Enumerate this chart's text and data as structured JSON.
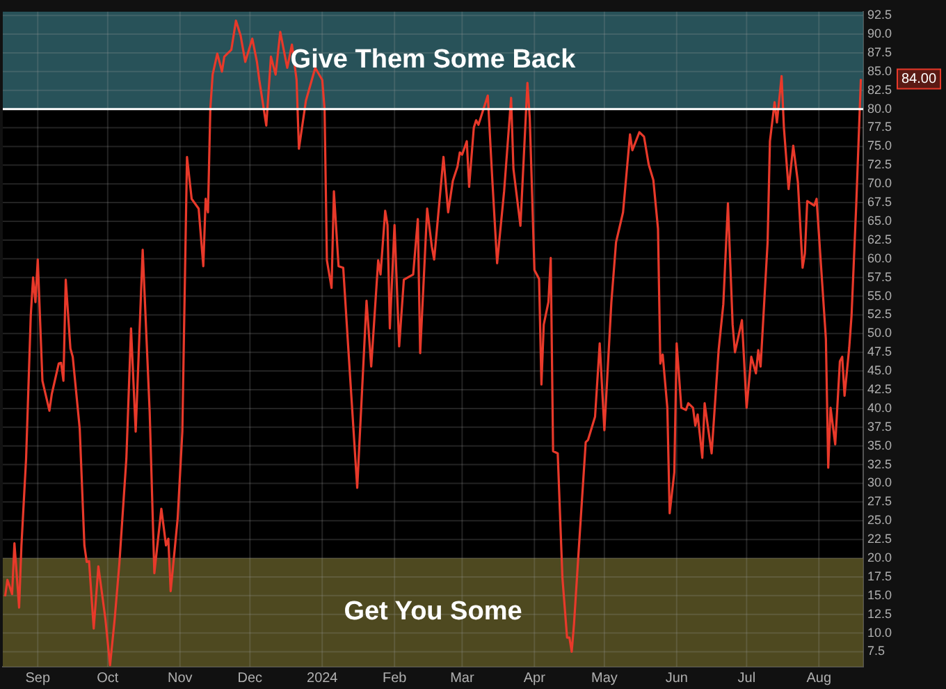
{
  "chart_data": {
    "type": "line",
    "x": [
      "2023-08-18",
      "2023-08-19",
      "2023-08-21",
      "2023-08-22",
      "2023-08-24",
      "2023-08-25",
      "2023-08-27",
      "2023-08-29",
      "2023-08-30",
      "2023-08-31",
      "2023-09-01",
      "2023-09-03",
      "2023-09-06",
      "2023-09-07",
      "2023-09-10",
      "2023-09-11",
      "2023-09-12",
      "2023-09-13",
      "2023-09-15",
      "2023-09-16",
      "2023-09-19",
      "2023-09-21",
      "2023-09-22",
      "2023-09-23",
      "2023-09-25",
      "2023-09-27",
      "2023-09-30",
      "2023-10-02",
      "2023-10-04",
      "2023-10-06",
      "2023-10-09",
      "2023-10-11",
      "2023-10-13",
      "2023-10-16",
      "2023-10-19",
      "2023-10-21",
      "2023-10-24",
      "2023-10-26",
      "2023-10-27",
      "2023-10-28",
      "2023-10-31",
      "2023-11-02",
      "2023-11-04",
      "2023-11-06",
      "2023-11-09",
      "2023-11-11",
      "2023-11-12",
      "2023-11-13",
      "2023-11-14",
      "2023-11-15",
      "2023-11-17",
      "2023-11-19",
      "2023-11-20",
      "2023-11-23",
      "2023-11-25",
      "2023-11-27",
      "2023-11-29",
      "2023-12-02",
      "2023-12-04",
      "2023-12-05",
      "2023-12-08",
      "2023-12-10",
      "2023-12-12",
      "2023-12-14",
      "2023-12-17",
      "2023-12-19",
      "2023-12-21",
      "2023-12-22",
      "2023-12-25",
      "2023-12-29",
      "2024-01-01",
      "2024-01-02",
      "2024-01-03",
      "2024-01-05",
      "2024-01-06",
      "2024-01-08",
      "2024-01-10",
      "2024-01-12",
      "2024-01-16",
      "2024-01-20",
      "2024-01-22",
      "2024-01-25",
      "2024-01-26",
      "2024-01-28",
      "2024-01-29",
      "2024-01-30",
      "2024-02-01",
      "2024-02-03",
      "2024-02-05",
      "2024-02-09",
      "2024-02-11",
      "2024-02-12",
      "2024-02-15",
      "2024-02-17",
      "2024-02-18",
      "2024-02-22",
      "2024-02-24",
      "2024-02-26",
      "2024-02-28",
      "2024-02-29",
      "2024-03-01",
      "2024-03-03",
      "2024-03-04",
      "2024-03-06",
      "2024-03-07",
      "2024-03-08",
      "2024-03-12",
      "2024-03-14",
      "2024-03-16",
      "2024-03-19",
      "2024-03-22",
      "2024-03-23",
      "2024-03-26",
      "2024-03-29",
      "2024-03-30",
      "2024-04-01",
      "2024-04-03",
      "2024-04-04",
      "2024-04-05",
      "2024-04-07",
      "2024-04-08",
      "2024-04-09",
      "2024-04-11",
      "2024-04-13",
      "2024-04-15",
      "2024-04-16",
      "2024-04-17",
      "2024-04-18",
      "2024-04-20",
      "2024-04-23",
      "2024-04-24",
      "2024-04-27",
      "2024-04-29",
      "2024-05-01",
      "2024-05-04",
      "2024-05-06",
      "2024-05-09",
      "2024-05-12",
      "2024-05-13",
      "2024-05-16",
      "2024-05-18",
      "2024-05-20",
      "2024-05-22",
      "2024-05-24",
      "2024-05-25",
      "2024-05-26",
      "2024-05-28",
      "2024-05-29",
      "2024-05-31",
      "2024-06-01",
      "2024-06-03",
      "2024-06-05",
      "2024-06-06",
      "2024-06-08",
      "2024-06-09",
      "2024-06-10",
      "2024-06-12",
      "2024-06-13",
      "2024-06-16",
      "2024-06-19",
      "2024-06-21",
      "2024-06-23",
      "2024-06-25",
      "2024-06-26",
      "2024-06-29",
      "2024-07-01",
      "2024-07-03",
      "2024-07-05",
      "2024-07-06",
      "2024-07-07",
      "2024-07-10",
      "2024-07-11",
      "2024-07-13",
      "2024-07-14",
      "2024-07-16",
      "2024-07-17",
      "2024-07-19",
      "2024-07-21",
      "2024-07-23",
      "2024-07-25",
      "2024-07-26",
      "2024-07-27",
      "2024-07-30",
      "2024-07-31",
      "2024-08-04",
      "2024-08-05",
      "2024-08-06",
      "2024-08-08",
      "2024-08-10",
      "2024-08-11",
      "2024-08-12",
      "2024-08-14",
      "2024-08-15",
      "2024-08-17",
      "2024-08-19"
    ],
    "series": [
      {
        "color": "#e8392a",
        "values": [
          14.9,
          17.1,
          15.2,
          22.0,
          13.4,
          21.7,
          33.3,
          52.4,
          57.5,
          54.2,
          59.9,
          43.7,
          39.7,
          41.9,
          46.0,
          46.1,
          43.7,
          57.2,
          48.0,
          46.9,
          37.3,
          21.7,
          19.5,
          19.6,
          10.6,
          18.9,
          11.9,
          5.7,
          11.9,
          19.3,
          33.3,
          50.7,
          36.9,
          61.2,
          39.5,
          18.0,
          26.6,
          21.7,
          22.6,
          15.6,
          25.3,
          36.9,
          73.6,
          68.0,
          66.7,
          59.0,
          68.0,
          66.2,
          80.0,
          84.6,
          87.4,
          85.0,
          87.0,
          87.9,
          91.8,
          89.8,
          86.3,
          89.4,
          86.3,
          83.9,
          77.8,
          87.0,
          84.6,
          90.3,
          85.5,
          88.6,
          83.9,
          74.7,
          81.1,
          85.5,
          83.9,
          80.0,
          59.8,
          56.1,
          69.0,
          59.0,
          58.8,
          48.9,
          29.4,
          54.4,
          45.6,
          59.8,
          57.9,
          66.4,
          64.5,
          50.7,
          64.5,
          48.3,
          57.2,
          57.9,
          65.3,
          47.4,
          66.7,
          61.6,
          59.9,
          73.6,
          66.2,
          70.4,
          72.3,
          74.2,
          73.9,
          75.7,
          69.6,
          77.5,
          78.5,
          77.9,
          81.8,
          70.2,
          59.4,
          69.0,
          81.5,
          72.0,
          64.4,
          83.5,
          78.8,
          58.5,
          57.3,
          43.2,
          51.2,
          54.2,
          60.1,
          34.3,
          34.0,
          17.4,
          9.4,
          9.4,
          7.5,
          11.3,
          21.1,
          35.5,
          35.8,
          38.9,
          48.7,
          37.1,
          54.2,
          62.2,
          66.2,
          76.6,
          74.5,
          76.9,
          76.3,
          72.6,
          70.5,
          64.0,
          46.0,
          47.2,
          40.1,
          26.0,
          31.5,
          48.7,
          40.1,
          39.8,
          40.7,
          40.1,
          37.7,
          39.2,
          33.4,
          40.7,
          34.0,
          47.8,
          53.9,
          67.4,
          51.2,
          47.5,
          51.8,
          40.1,
          46.9,
          44.7,
          47.8,
          45.6,
          62.2,
          75.7,
          80.9,
          78.2,
          84.4,
          77.5,
          69.3,
          75.1,
          70.2,
          58.8,
          60.7,
          67.7,
          67.1,
          68.0,
          49.3,
          32.1,
          40.1,
          35.2,
          46.3,
          46.9,
          41.7,
          48.1,
          52.4,
          67.1,
          84.0
        ]
      }
    ],
    "xlim": [
      "2023-08-17",
      "2024-08-20"
    ],
    "xticks": [
      {
        "value": "2023-09-01",
        "label": "Sep"
      },
      {
        "value": "2023-10-01",
        "label": "Oct"
      },
      {
        "value": "2023-11-01",
        "label": "Nov"
      },
      {
        "value": "2023-12-01",
        "label": "Dec"
      },
      {
        "value": "2024-01-01",
        "label": "2024"
      },
      {
        "value": "2024-02-01",
        "label": "Feb"
      },
      {
        "value": "2024-03-01",
        "label": "Mar"
      },
      {
        "value": "2024-04-01",
        "label": "Apr"
      },
      {
        "value": "2024-05-01",
        "label": "May"
      },
      {
        "value": "2024-06-01",
        "label": "Jun"
      },
      {
        "value": "2024-07-01",
        "label": "Jul"
      },
      {
        "value": "2024-08-01",
        "label": "Aug"
      }
    ],
    "ylim": [
      5.5,
      93
    ],
    "yticks": [
      {
        "value": 7.5,
        "label": "7.5"
      },
      {
        "value": 10,
        "label": "10.0"
      },
      {
        "value": 12.5,
        "label": "12.5"
      },
      {
        "value": 15,
        "label": "15.0"
      },
      {
        "value": 17.5,
        "label": "17.5"
      },
      {
        "value": 20,
        "label": "20.0"
      },
      {
        "value": 22.5,
        "label": "22.5"
      },
      {
        "value": 25,
        "label": "25.0"
      },
      {
        "value": 27.5,
        "label": "27.5"
      },
      {
        "value": 30,
        "label": "30.0"
      },
      {
        "value": 32.5,
        "label": "32.5"
      },
      {
        "value": 35,
        "label": "35.0"
      },
      {
        "value": 37.5,
        "label": "37.5"
      },
      {
        "value": 40,
        "label": "40.0"
      },
      {
        "value": 42.5,
        "label": "42.5"
      },
      {
        "value": 45,
        "label": "45.0"
      },
      {
        "value": 47.5,
        "label": "47.5"
      },
      {
        "value": 50,
        "label": "50.0"
      },
      {
        "value": 52.5,
        "label": "52.5"
      },
      {
        "value": 55,
        "label": "55.0"
      },
      {
        "value": 57.5,
        "label": "57.5"
      },
      {
        "value": 60,
        "label": "60.0"
      },
      {
        "value": 62.5,
        "label": "62.5"
      },
      {
        "value": 65,
        "label": "65.0"
      },
      {
        "value": 67.5,
        "label": "67.5"
      },
      {
        "value": 70,
        "label": "70.0"
      },
      {
        "value": 72.5,
        "label": "72.5"
      },
      {
        "value": 75,
        "label": "75.0"
      },
      {
        "value": 77.5,
        "label": "77.5"
      },
      {
        "value": 80,
        "label": "80.0"
      },
      {
        "value": 82.5,
        "label": "82.5"
      },
      {
        "value": 85,
        "label": "85.0"
      },
      {
        "value": 87.5,
        "label": "87.5"
      },
      {
        "value": 90,
        "label": "90.0"
      },
      {
        "value": 92.5,
        "label": "92.5"
      }
    ],
    "bands": [
      {
        "axis": "y",
        "from": 80,
        "to": 93,
        "label": "Give Them Some Back",
        "color": "#2f6068"
      },
      {
        "axis": "y",
        "from": 5.5,
        "to": 20,
        "label": "Get You Some",
        "color": "#5c5626"
      }
    ],
    "ref_lines": [
      {
        "axis": "y",
        "value": 80,
        "color": "#ffffff"
      }
    ],
    "annotations": [
      {
        "text": "84.00",
        "x": "2024-08-19",
        "y": 84
      }
    ],
    "grid": true,
    "marker": "none",
    "line_style": "solid",
    "legend": false
  }
}
